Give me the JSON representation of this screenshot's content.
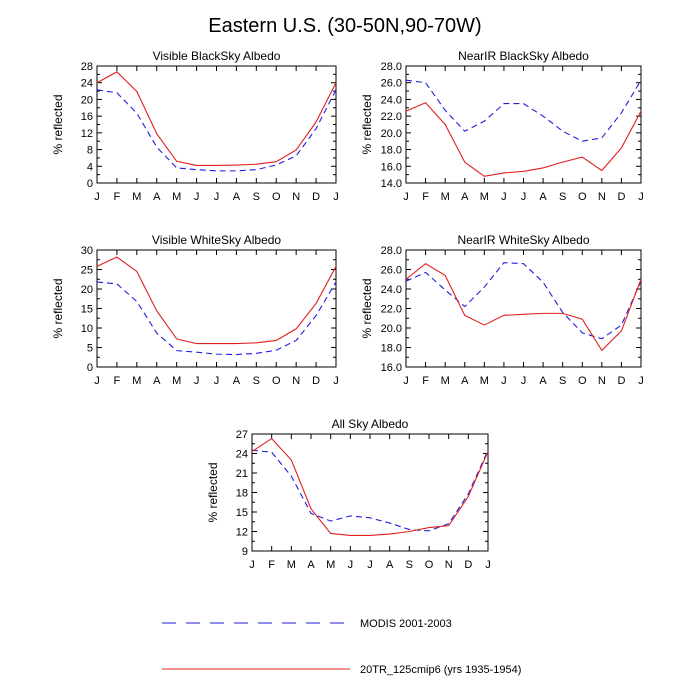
{
  "figure": {
    "title": "Eastern U.S. (30-50N,90-70W)"
  },
  "legend": {
    "placement": "bottom-center",
    "items": [
      {
        "label": "MODIS 2001-2003",
        "color": "#1f1fe0",
        "style": "dashed"
      },
      {
        "label": "20TR_125cmip6 (yrs 1935-1954)",
        "color": "#e01f1f",
        "style": "solid"
      }
    ]
  },
  "chart_data": [
    {
      "type": "line",
      "title": "Visible BlackSky Albedo",
      "ylabel": "% reflected",
      "xlabel": "",
      "categories": [
        "J",
        "F",
        "M",
        "A",
        "M",
        "J",
        "J",
        "A",
        "S",
        "O",
        "N",
        "D",
        "J"
      ],
      "ylim": [
        0,
        28
      ],
      "yticks": [
        0,
        4,
        8,
        12,
        16,
        20,
        24,
        28
      ],
      "ytick_labels": [
        "0",
        "4",
        "8",
        "12",
        "16",
        "20",
        "24",
        "28"
      ],
      "series": [
        {
          "name": "MODIS 2001-2003",
          "color": "#1f1fe0",
          "style": "dashed",
          "values": [
            22.3,
            21.6,
            16.7,
            8.6,
            3.6,
            3.2,
            2.9,
            2.9,
            3.2,
            4.3,
            6.5,
            13.0,
            22.3
          ]
        },
        {
          "name": "20TR_125cmip6 (yrs 1935-1954)",
          "color": "#e01f1f",
          "style": "solid",
          "values": [
            24.0,
            26.6,
            21.9,
            11.8,
            5.2,
            4.2,
            4.2,
            4.3,
            4.5,
            5.1,
            7.9,
            14.6,
            24.0
          ]
        }
      ]
    },
    {
      "type": "line",
      "title": "NearIR BlackSky Albedo",
      "ylabel": "% reflected",
      "xlabel": "",
      "categories": [
        "J",
        "F",
        "M",
        "A",
        "M",
        "J",
        "J",
        "A",
        "S",
        "O",
        "N",
        "D",
        "J"
      ],
      "ylim": [
        14,
        28
      ],
      "yticks": [
        14,
        16,
        18,
        20,
        22,
        24,
        26,
        28
      ],
      "ytick_labels": [
        "14.0",
        "16.0",
        "18.0",
        "20.0",
        "22.0",
        "24.0",
        "26.0",
        "28.0"
      ],
      "series": [
        {
          "name": "MODIS 2001-2003",
          "color": "#1f1fe0",
          "style": "dashed",
          "values": [
            26.3,
            26.0,
            22.7,
            20.2,
            21.4,
            23.5,
            23.5,
            22.0,
            20.2,
            19.0,
            19.4,
            22.4,
            26.3
          ]
        },
        {
          "name": "20TR_125cmip6 (yrs 1935-1954)",
          "color": "#e01f1f",
          "style": "solid",
          "values": [
            22.6,
            23.6,
            21.0,
            16.5,
            14.8,
            15.2,
            15.4,
            15.8,
            16.5,
            17.1,
            15.5,
            18.2,
            22.6
          ]
        }
      ]
    },
    {
      "type": "line",
      "title": "Visible WhiteSky Albedo",
      "ylabel": "% reflected",
      "xlabel": "",
      "categories": [
        "J",
        "F",
        "M",
        "A",
        "M",
        "J",
        "J",
        "A",
        "S",
        "O",
        "N",
        "D",
        "J"
      ],
      "ylim": [
        0,
        30
      ],
      "yticks": [
        0,
        5,
        10,
        15,
        20,
        25,
        30
      ],
      "ytick_labels": [
        "0",
        "5",
        "10",
        "15",
        "20",
        "25",
        "30"
      ],
      "series": [
        {
          "name": "MODIS 2001-2003",
          "color": "#1f1fe0",
          "style": "dashed",
          "values": [
            21.8,
            21.3,
            16.8,
            8.7,
            4.2,
            3.8,
            3.3,
            3.2,
            3.5,
            4.3,
            6.8,
            13.2,
            21.8
          ]
        },
        {
          "name": "20TR_125cmip6 (yrs 1935-1954)",
          "color": "#e01f1f",
          "style": "solid",
          "values": [
            25.8,
            28.2,
            24.5,
            14.4,
            7.2,
            6.0,
            6.0,
            6.0,
            6.2,
            6.8,
            9.8,
            16.3,
            25.8
          ]
        }
      ]
    },
    {
      "type": "line",
      "title": "NearIR WhiteSky Albedo",
      "ylabel": "% reflected",
      "xlabel": "",
      "categories": [
        "J",
        "F",
        "M",
        "A",
        "M",
        "J",
        "J",
        "A",
        "S",
        "O",
        "N",
        "D",
        "J"
      ],
      "ylim": [
        16,
        28
      ],
      "yticks": [
        16,
        18,
        20,
        22,
        24,
        26,
        28
      ],
      "ytick_labels": [
        "16.0",
        "18.0",
        "20.0",
        "22.0",
        "24.0",
        "26.0",
        "28.0"
      ],
      "series": [
        {
          "name": "MODIS 2001-2003",
          "color": "#1f1fe0",
          "style": "dashed",
          "values": [
            24.8,
            25.7,
            23.9,
            22.2,
            24.2,
            26.7,
            26.6,
            24.7,
            21.6,
            19.5,
            18.9,
            20.3,
            24.8
          ]
        },
        {
          "name": "20TR_125cmip6 (yrs 1935-1954)",
          "color": "#e01f1f",
          "style": "solid",
          "values": [
            25.0,
            26.6,
            25.4,
            21.3,
            20.3,
            21.3,
            21.4,
            21.5,
            21.5,
            20.9,
            17.7,
            19.7,
            25.0
          ]
        }
      ]
    },
    {
      "type": "line",
      "title": "All Sky Albedo",
      "ylabel": "% reflected",
      "xlabel": "",
      "categories": [
        "J",
        "F",
        "M",
        "A",
        "M",
        "J",
        "J",
        "A",
        "S",
        "O",
        "N",
        "D",
        "J"
      ],
      "ylim": [
        9,
        27
      ],
      "yticks": [
        9,
        12,
        15,
        18,
        21,
        24,
        27
      ],
      "ytick_labels": [
        "9",
        "12",
        "15",
        "18",
        "21",
        "24",
        "27"
      ],
      "series": [
        {
          "name": "MODIS 2001-2003",
          "color": "#1f1fe0",
          "style": "dashed",
          "values": [
            24.5,
            24.2,
            20.5,
            14.8,
            13.6,
            14.4,
            14.1,
            13.3,
            12.3,
            12.1,
            13.2,
            17.8,
            24.5
          ]
        },
        {
          "name": "20TR_125cmip6 (yrs 1935-1954)",
          "color": "#e01f1f",
          "style": "solid",
          "values": [
            24.3,
            26.3,
            23.0,
            15.5,
            11.7,
            11.4,
            11.4,
            11.6,
            12.0,
            12.6,
            12.9,
            17.4,
            24.3
          ]
        }
      ]
    }
  ]
}
